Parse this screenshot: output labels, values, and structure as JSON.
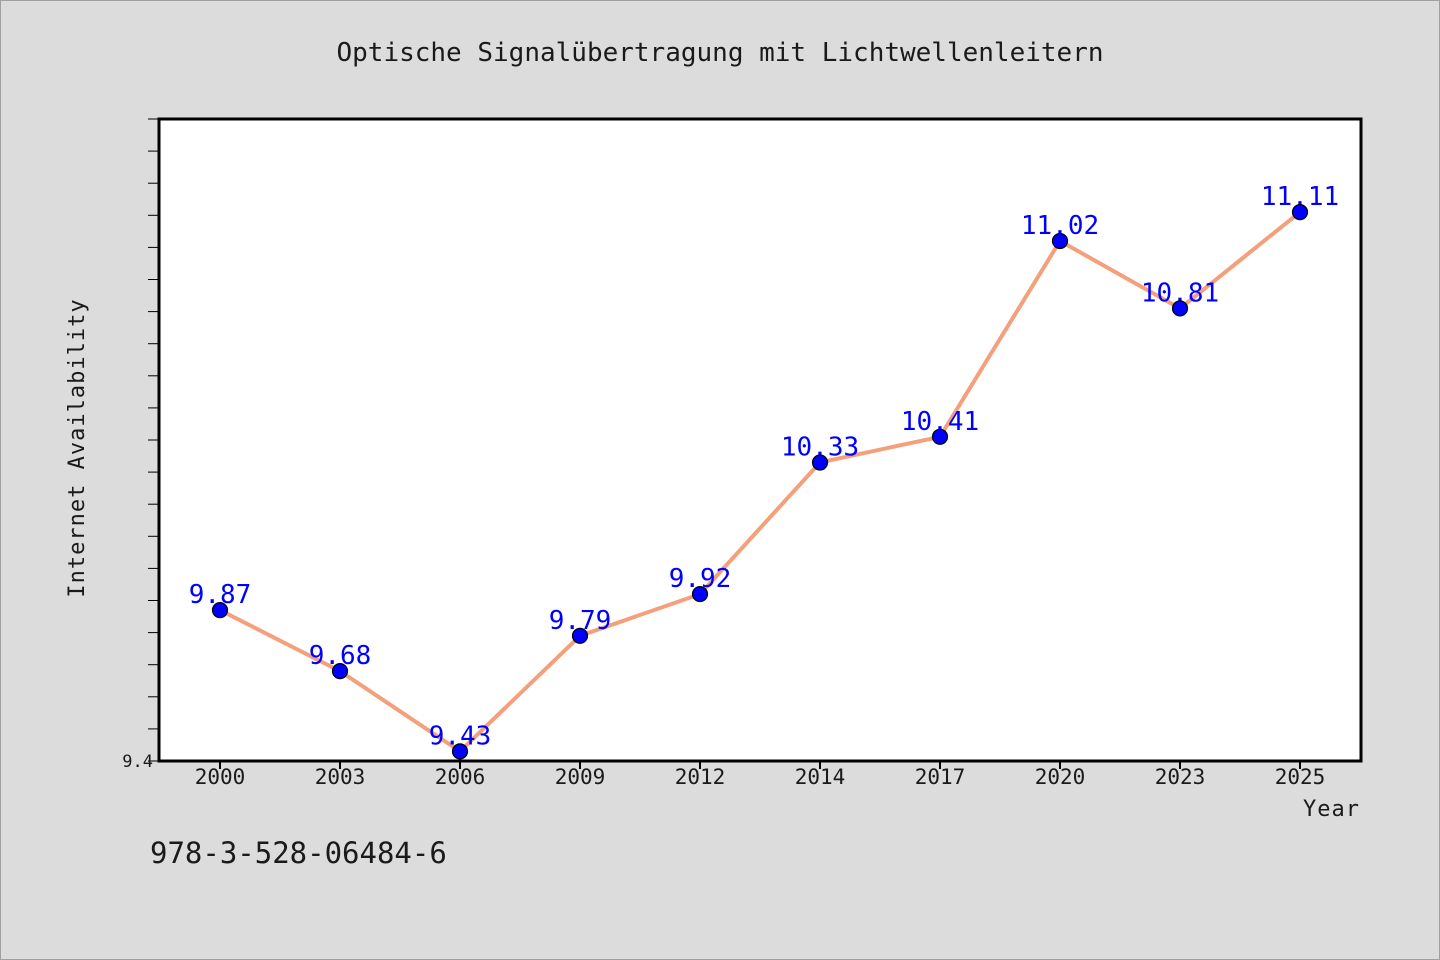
{
  "chart_data": {
    "type": "line",
    "title": "Optische Signalübertragung mit Lichtwellenleitern",
    "xlabel": "Year",
    "ylabel": "Internet Availability",
    "categories": [
      "2000",
      "2003",
      "2006",
      "2009",
      "2012",
      "2014",
      "2017",
      "2020",
      "2023",
      "2025"
    ],
    "series": [
      {
        "values": [
          9.87,
          9.68,
          9.43,
          9.79,
          9.92,
          10.33,
          10.41,
          11.02,
          10.81,
          11.11
        ]
      }
    ],
    "data_labels": [
      "9.87",
      "9.68",
      "9.43",
      "9.79",
      "9.92",
      "10.33",
      "10.41",
      "11.02",
      "10.81",
      "11.11"
    ],
    "ylim": [
      9.4,
      11.4
    ],
    "y_tick_labels": [
      "9.4"
    ],
    "grid": false,
    "line_color": "#f4a07c",
    "marker_color": "#0000ff",
    "label_color": "#0000ff"
  },
  "footer_text": "978-3-528-06484-6"
}
